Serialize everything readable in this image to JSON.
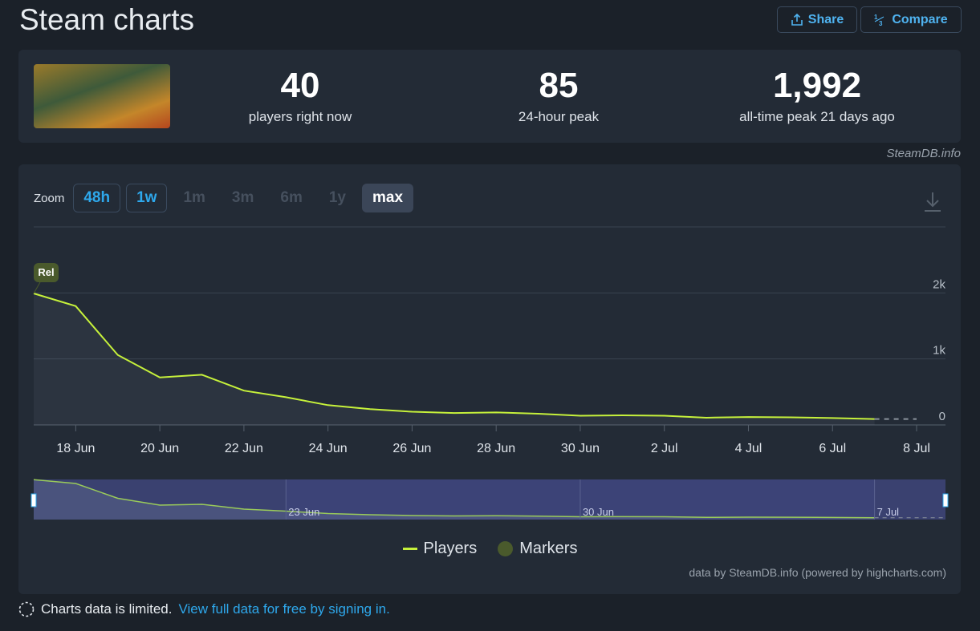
{
  "header": {
    "title": "Steam charts",
    "share": "Share",
    "compare": "Compare"
  },
  "stats": [
    {
      "value": "40",
      "label": "players right now"
    },
    {
      "value": "85",
      "label": "24-hour peak"
    },
    {
      "value": "1,992",
      "label": "all-time peak 21 days ago"
    }
  ],
  "source": "SteamDB.info",
  "zoom": {
    "label": "Zoom",
    "options": [
      {
        "label": "48h",
        "state": "enabled"
      },
      {
        "label": "1w",
        "state": "enabled"
      },
      {
        "label": "1m",
        "state": "disabled"
      },
      {
        "label": "3m",
        "state": "disabled"
      },
      {
        "label": "6m",
        "state": "disabled"
      },
      {
        "label": "1y",
        "state": "disabled"
      },
      {
        "label": "max",
        "state": "active"
      }
    ]
  },
  "chart_data": {
    "type": "line",
    "x": [
      "17 Jun",
      "18 Jun",
      "19 Jun",
      "20 Jun",
      "21 Jun",
      "22 Jun",
      "23 Jun",
      "24 Jun",
      "25 Jun",
      "26 Jun",
      "27 Jun",
      "28 Jun",
      "29 Jun",
      "30 Jun",
      "1 Jul",
      "2 Jul",
      "3 Jul",
      "4 Jul",
      "5 Jul",
      "6 Jul",
      "7 Jul",
      "8 Jul"
    ],
    "series": [
      {
        "name": "Players",
        "color": "#c6f13b",
        "values": [
          1992,
          1800,
          1060,
          720,
          760,
          520,
          420,
          300,
          240,
          200,
          180,
          190,
          170,
          140,
          145,
          140,
          110,
          120,
          115,
          105,
          90,
          null
        ]
      }
    ],
    "xticks": [
      "18 Jun",
      "20 Jun",
      "22 Jun",
      "24 Jun",
      "26 Jun",
      "28 Jun",
      "30 Jun",
      "2 Jul",
      "4 Jul",
      "6 Jul",
      "8 Jul"
    ],
    "ylim": [
      0,
      3000
    ],
    "yticks": [
      {
        "value": 0,
        "label": "0"
      },
      {
        "value": 1000,
        "label": "1k"
      },
      {
        "value": 2000,
        "label": "2k"
      }
    ],
    "grid": true,
    "markers": {
      "name": "Markers",
      "color": "#4a5a2c",
      "labels": [
        "Rel"
      ]
    },
    "navigator_labels": [
      "23 Jun",
      "30 Jun",
      "7 Jul"
    ]
  },
  "credits": "data by SteamDB.info (powered by highcharts.com)",
  "notice": {
    "text": "Charts data is limited.",
    "link": "View full data for free by signing in."
  }
}
